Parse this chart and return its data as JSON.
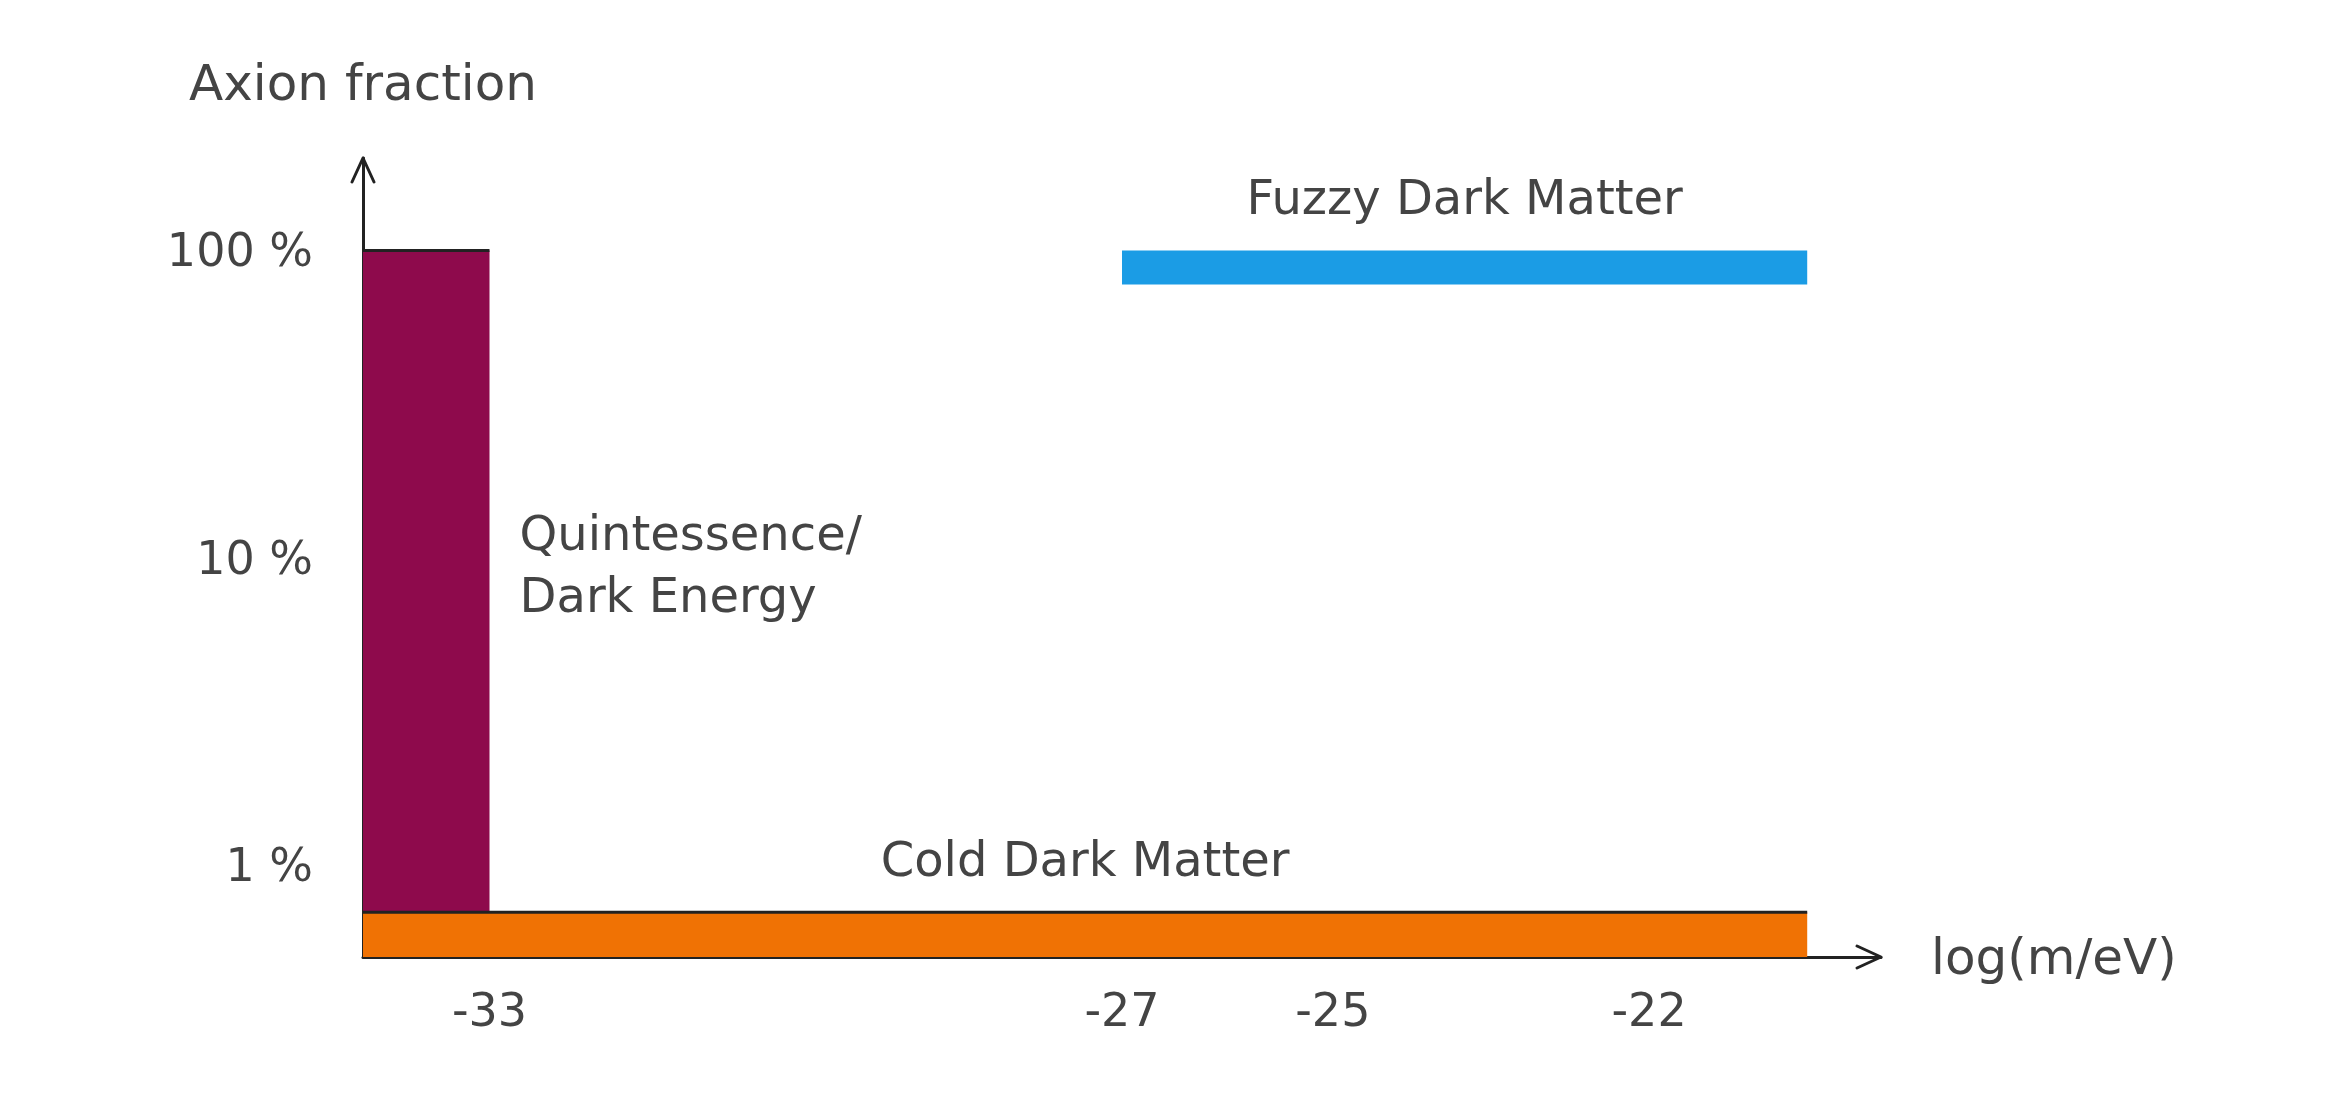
{
  "chart_data": {
    "type": "area",
    "xlabel": "log(m/eV)",
    "ylabel": "Axion fraction",
    "log": "y",
    "xlim": [
      -34.2,
      -19.8
    ],
    "xticks": [
      -33,
      -27,
      -25,
      -22
    ],
    "ylim": [
      0.5,
      200
    ],
    "yticks": [
      {
        "value": 1,
        "label": "1 %"
      },
      {
        "value": 10,
        "label": "10 %"
      },
      {
        "value": 100,
        "label": "100 %"
      }
    ],
    "series": [
      {
        "name": "Quintessence/\nDark Energy",
        "color": "#8e0a4c",
        "x": [
          -34.2,
          -33
        ],
        "values": [
          100,
          100
        ]
      },
      {
        "name": "Cold Dark Matter",
        "color": "#f07204",
        "x": [
          -34.2,
          -20.5
        ],
        "values": [
          0.7,
          0.7
        ]
      },
      {
        "name": "Fuzzy Dark Matter",
        "type": "line",
        "color": "#1b9ce5",
        "x": [
          -27,
          -20.5
        ],
        "values": [
          88,
          88
        ]
      }
    ]
  }
}
